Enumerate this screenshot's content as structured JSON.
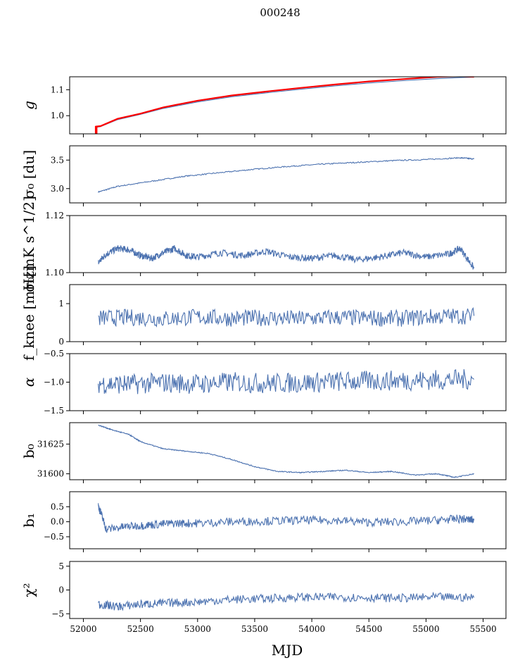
{
  "suptitle": "000248",
  "colors": {
    "series": "#4c72b0",
    "overlay": "#ff0000"
  },
  "chart_data": {
    "type": "line",
    "xlabel": "MJD",
    "xlim": [
      51880,
      55700
    ],
    "xticks": [
      52000,
      52500,
      53000,
      53500,
      54000,
      54500,
      55000,
      55500
    ],
    "xtick_labels": [
      "52000",
      "52500",
      "53000",
      "53500",
      "54000",
      "54500",
      "55000",
      "55500"
    ],
    "grid": false,
    "panels": [
      {
        "key": "g",
        "ylabel": "g",
        "ylim": [
          0.93,
          1.15
        ],
        "yticks": [
          1.0,
          1.1
        ],
        "ytick_labels": [
          "1.0",
          "1.1"
        ],
        "series": [
          {
            "x": [
              52110,
              52150,
              52300,
              52500,
              52700,
              53000,
              53300,
              53600,
              53900,
              54200,
              54500,
              54800,
              55100,
              55300,
              55420
            ],
            "y": [
              0.955,
              0.958,
              0.985,
              1.005,
              1.028,
              1.053,
              1.073,
              1.088,
              1.102,
              1.115,
              1.126,
              1.135,
              1.143,
              1.147,
              1.149
            ]
          },
          {
            "x": [
              52105,
              52150,
              52300,
              52500,
              52700,
              53000,
              53300,
              53600,
              53900,
              54200,
              54500,
              54800,
              55100,
              55300,
              55420
            ],
            "y": [
              0.958,
              0.96,
              0.988,
              1.008,
              1.032,
              1.058,
              1.078,
              1.093,
              1.107,
              1.12,
              1.132,
              1.141,
              1.15,
              1.152,
              1.15
            ]
          }
        ]
      },
      {
        "key": "sigma0_du",
        "ylabel": "σ₀ [du]",
        "ylim": [
          2.75,
          3.75
        ],
        "yticks": [
          3.0,
          3.5
        ],
        "ytick_labels": [
          "3.0",
          "3.5"
        ],
        "series": [
          {
            "x": [
              52130,
              52300,
              52600,
              52900,
              53200,
              53500,
              53800,
              54100,
              54400,
              54700,
              55000,
              55300,
              55420
            ],
            "y": [
              2.94,
              3.04,
              3.13,
              3.22,
              3.28,
              3.34,
              3.39,
              3.43,
              3.46,
              3.49,
              3.51,
              3.54,
              3.52
            ]
          }
        ]
      },
      {
        "key": "sigma0_mk",
        "ylabel": "σ₀[mK s^1/2]",
        "ylim": [
          1.1,
          1.12
        ],
        "yticks": [
          1.1,
          1.12
        ],
        "ytick_labels": [
          "1.10",
          "1.12"
        ],
        "series": [
          {
            "x": [
              52130,
              52200,
              52300,
              52400,
              52500,
              52600,
              52700,
              52800,
              52900,
              53000,
              53200,
              53400,
              53600,
              53800,
              54000,
              54200,
              54400,
              54600,
              54800,
              55000,
              55200,
              55300,
              55420
            ],
            "y": [
              1.1035,
              1.1065,
              1.1085,
              1.108,
              1.106,
              1.105,
              1.107,
              1.1085,
              1.106,
              1.1055,
              1.107,
              1.106,
              1.1075,
              1.1055,
              1.105,
              1.106,
              1.1045,
              1.1055,
              1.107,
              1.1055,
              1.1065,
              1.1085,
              1.1015
            ]
          }
        ]
      },
      {
        "key": "fknee",
        "ylabel": "f_knee [mHz]",
        "ylim": [
          0,
          1.5
        ],
        "yticks": [
          0,
          1
        ],
        "ytick_labels": [
          "0",
          "1"
        ],
        "series": [
          {
            "x": [
              52130,
              52400,
              52700,
              53000,
              53300,
              53600,
              53900,
              54200,
              54500,
              54800,
              55100,
              55420
            ],
            "y": [
              0.62,
              0.64,
              0.6,
              0.65,
              0.61,
              0.63,
              0.6,
              0.64,
              0.62,
              0.61,
              0.66,
              0.68
            ]
          }
        ]
      },
      {
        "key": "alpha",
        "ylabel": "α",
        "ylim": [
          -1.5,
          -0.5
        ],
        "yticks": [
          -1.5,
          -1.0,
          -0.5
        ],
        "ytick_labels": [
          "−1.5",
          "−1.0",
          "−0.5"
        ],
        "series": [
          {
            "x": [
              52130,
              52400,
              52700,
              53000,
              53300,
              53600,
              53900,
              54200,
              54500,
              54800,
              55100,
              55420
            ],
            "y": [
              -1.02,
              -1.04,
              -1.01,
              -1.03,
              -1.0,
              -1.02,
              -1.01,
              -0.99,
              -0.98,
              -0.97,
              -0.96,
              -0.95
            ]
          }
        ]
      },
      {
        "key": "b0",
        "ylabel": "b₀",
        "ylim": [
          31595,
          31643
        ],
        "yticks": [
          31600,
          31625
        ],
        "ytick_labels": [
          "31600",
          "31625"
        ],
        "series": [
          {
            "x": [
              52130,
              52250,
              52400,
              52500,
              52700,
              52900,
              53100,
              53300,
              53500,
              53700,
              53900,
              54100,
              54300,
              54500,
              54700,
              54900,
              55100,
              55250,
              55420
            ],
            "y": [
              31641,
              31637,
              31633,
              31627,
              31621,
              31619,
              31617,
              31612,
              31606,
              31602,
              31601,
              31602,
              31603,
              31601,
              31602,
              31599,
              31600,
              31597,
              31600
            ]
          }
        ]
      },
      {
        "key": "b1",
        "ylabel": "b₁",
        "ylim": [
          -0.9,
          1.0
        ],
        "yticks": [
          -0.5,
          0.0,
          0.5
        ],
        "ytick_labels": [
          "−0.5",
          "0.0",
          "0.5"
        ],
        "series": [
          {
            "x": [
              52130,
              52200,
              52400,
              52600,
              52800,
              53000,
              53300,
              53600,
              53900,
              54200,
              54500,
              54800,
              55100,
              55300,
              55420
            ],
            "y": [
              0.55,
              -0.25,
              -0.15,
              -0.1,
              -0.05,
              -0.05,
              0.0,
              0.02,
              0.05,
              0.05,
              -0.02,
              0.0,
              0.05,
              0.1,
              0.05
            ]
          }
        ]
      },
      {
        "key": "chi2",
        "ylabel": "χ²",
        "ylim": [
          -6,
          6
        ],
        "yticks": [
          -5,
          0,
          5
        ],
        "ytick_labels": [
          "−5",
          "0",
          "5"
        ],
        "series": [
          {
            "x": [
              52130,
              52300,
              52500,
              52700,
              53000,
              53300,
              53600,
              53900,
              54200,
              54500,
              54800,
              55100,
              55420
            ],
            "y": [
              -3.0,
              -3.5,
              -3.0,
              -2.8,
              -2.5,
              -2.0,
              -1.8,
              -1.5,
              -1.5,
              -1.6,
              -1.7,
              -1.5,
              -1.6
            ]
          }
        ]
      }
    ]
  }
}
